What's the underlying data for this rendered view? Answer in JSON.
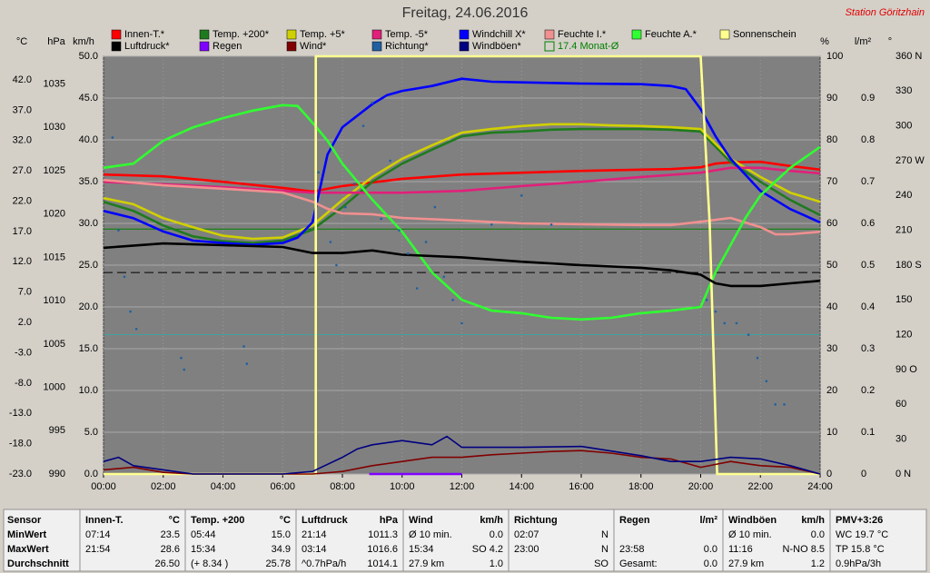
{
  "chart_data": {
    "type": "line",
    "title": "Freitag, 24.06.2016",
    "station": "Station Göritzhain",
    "xlim": [
      0,
      24
    ],
    "xticks": [
      {
        "value": 0,
        "label": "00:00"
      },
      {
        "value": 2,
        "label": "02:00"
      },
      {
        "value": 4,
        "label": "04:00"
      },
      {
        "value": 6,
        "label": "06:00"
      },
      {
        "value": 8,
        "label": "08:00"
      },
      {
        "value": 10,
        "label": "10:00"
      },
      {
        "value": 12,
        "label": "12:00"
      },
      {
        "value": 14,
        "label": "14:00"
      },
      {
        "value": 16,
        "label": "16:00"
      },
      {
        "value": 18,
        "label": "18:00"
      },
      {
        "value": 20,
        "label": "20:00"
      },
      {
        "value": 22,
        "label": "22:00"
      },
      {
        "value": 24,
        "label": "24:00"
      }
    ],
    "ylabel": "km/h",
    "ylim": [
      0,
      50
    ],
    "yticks": [
      {
        "value": 0,
        "label": "0.0"
      },
      {
        "value": 5,
        "label": "5.0"
      },
      {
        "value": 10,
        "label": "10.0"
      },
      {
        "value": 15,
        "label": "15.0"
      },
      {
        "value": 20,
        "label": "20.0"
      },
      {
        "value": 25,
        "label": "25.0"
      },
      {
        "value": 30,
        "label": "30.0"
      },
      {
        "value": 35,
        "label": "35.0"
      },
      {
        "value": 40,
        "label": "40.0"
      },
      {
        "value": 45,
        "label": "45.0"
      },
      {
        "value": 50,
        "label": "50.0"
      }
    ],
    "y2label": "°C",
    "y2lim": [
      -23,
      45.9
    ],
    "y2ticks": [
      {
        "value": -23,
        "label": "-23.0"
      },
      {
        "value": -18,
        "label": "-18.0"
      },
      {
        "value": -13,
        "label": "-13.0"
      },
      {
        "value": -8,
        "label": "-8.0"
      },
      {
        "value": -3,
        "label": "-3.0"
      },
      {
        "value": 2,
        "label": "2.0"
      },
      {
        "value": 7,
        "label": "7.0"
      },
      {
        "value": 12,
        "label": "12.0"
      },
      {
        "value": 17,
        "label": "17.0"
      },
      {
        "value": 22,
        "label": "22.0"
      },
      {
        "value": 27,
        "label": "27.0"
      },
      {
        "value": 32,
        "label": "32.0"
      },
      {
        "value": 37,
        "label": "37.0"
      },
      {
        "value": 42,
        "label": "42.0"
      }
    ],
    "y3label": "hPa",
    "y3lim": [
      990,
      1038.2
    ],
    "y3ticks": [
      990,
      995,
      1000,
      1005,
      1010,
      1015,
      1020,
      1025,
      1030,
      1035
    ],
    "y4label": "%",
    "y4lim": [
      0,
      100
    ],
    "y4ticks": [
      0,
      10,
      20,
      30,
      40,
      50,
      60,
      70,
      80,
      90,
      100
    ],
    "y5label": "l/m²",
    "y5lim": [
      0,
      1
    ],
    "y5ticks": [
      0,
      0.1,
      0.2,
      0.3,
      0.4,
      0.5,
      0.6,
      0.7,
      0.8,
      0.9
    ],
    "y6label": "°",
    "y6lim": [
      0,
      360
    ],
    "y6ticks": [
      {
        "value": 0,
        "label": "0 N"
      },
      30,
      60,
      {
        "value": 90,
        "label": "90 O"
      },
      120,
      150,
      {
        "value": 180,
        "label": "180 S"
      },
      210,
      240,
      {
        "value": 270,
        "label": "270 W"
      },
      300,
      330,
      {
        "value": 360,
        "label": "360 N"
      }
    ],
    "grid": true,
    "series": [
      {
        "name": "Innen-T.*",
        "color": "#ff0000",
        "axis": "y2",
        "x": [
          0,
          2,
          4,
          6,
          7,
          8,
          10,
          12,
          14,
          16,
          18,
          19,
          20,
          20.5,
          21,
          22,
          23,
          24
        ],
        "values": [
          26.4,
          26.1,
          25.2,
          24.2,
          23.6,
          24.5,
          25.7,
          26.4,
          26.7,
          27.0,
          27.2,
          27.3,
          27.6,
          28.2,
          28.4,
          28.5,
          27.8,
          27.2
        ]
      },
      {
        "name": "Temp. +200*",
        "color": "#1f7a1f",
        "axis": "y2",
        "x": [
          0,
          1,
          2,
          3,
          4,
          5,
          6,
          7,
          8,
          9,
          10,
          11,
          12,
          13,
          14,
          15,
          16,
          17,
          18,
          19,
          20,
          21,
          22,
          23,
          24
        ],
        "values": [
          21.9,
          20.4,
          18.0,
          16.2,
          15.4,
          15.1,
          15.5,
          17.3,
          21.0,
          25.2,
          28.2,
          30.5,
          32.7,
          33.3,
          33.5,
          33.8,
          33.9,
          33.9,
          33.9,
          33.8,
          33.5,
          28.5,
          25.2,
          22.2,
          19.7
        ]
      },
      {
        "name": "Temp. +5*",
        "color": "#d0d000",
        "axis": "y2",
        "x": [
          0,
          1,
          2,
          3,
          4,
          5,
          6,
          7,
          8,
          9,
          10,
          11,
          12,
          13,
          14,
          15,
          16,
          17,
          18,
          19,
          20,
          21,
          22,
          23,
          24
        ],
        "values": [
          22.5,
          21.5,
          19.2,
          17.7,
          16.3,
          15.8,
          16.0,
          18.0,
          22.2,
          26.0,
          29.0,
          31.2,
          33.3,
          33.9,
          34.4,
          34.7,
          34.7,
          34.5,
          34.4,
          34.2,
          33.9,
          29.0,
          26.0,
          23.4,
          21.9
        ]
      },
      {
        "name": "Temp. -5*",
        "color": "#e0207a",
        "axis": "y2",
        "x": [
          0,
          2,
          4,
          6,
          7,
          8,
          10,
          12,
          14,
          16,
          18,
          20,
          21,
          22,
          23,
          24
        ],
        "values": [
          25.2,
          24.8,
          24.3,
          23.7,
          23.4,
          23.4,
          23.4,
          23.7,
          24.5,
          25.2,
          26.0,
          26.7,
          27.5,
          27.5,
          27.0,
          26.6
        ]
      },
      {
        "name": "Windchill X*",
        "color": "#0000ff",
        "axis": "y2",
        "x": [
          0,
          1,
          2,
          3,
          4,
          5,
          6,
          6.5,
          7,
          7.5,
          8,
          9,
          9.5,
          10,
          11,
          12,
          13,
          14,
          16,
          18,
          19,
          19.5,
          20,
          20.5,
          21,
          22,
          23,
          24
        ],
        "values": [
          20.4,
          19.2,
          17.0,
          15.5,
          15.1,
          14.8,
          15.1,
          16.0,
          18.5,
          29.7,
          34.2,
          38.0,
          39.5,
          40.2,
          41.0,
          42.2,
          41.7,
          41.6,
          41.4,
          41.3,
          41.0,
          40.5,
          37.2,
          32.7,
          29.0,
          23.7,
          20.7,
          18.5
        ]
      },
      {
        "name": "Feuchte I.*",
        "color": "#f09090",
        "axis": "y4",
        "x": [
          0,
          2,
          4,
          6,
          7,
          7.5,
          8,
          9,
          10,
          12,
          14,
          16,
          18,
          19,
          20,
          21,
          22,
          22.5,
          23,
          24
        ],
        "values": [
          70.4,
          69.1,
          68.3,
          67.4,
          65.2,
          63.5,
          62.4,
          62.2,
          61.3,
          60.7,
          60.0,
          59.8,
          59.6,
          59.6,
          60.4,
          61.3,
          59.1,
          57.4,
          57.4,
          58.0
        ]
      },
      {
        "name": "Feuchte A.*",
        "color": "#30ff30",
        "axis": "y4",
        "x": [
          0,
          1,
          2,
          3,
          4,
          5,
          6,
          6.5,
          7,
          7.5,
          8,
          9,
          10,
          11,
          12,
          13,
          14,
          15,
          16,
          17,
          18,
          19,
          20,
          20.5,
          21,
          21.5,
          22,
          23,
          24
        ],
        "values": [
          73.3,
          74.3,
          79.8,
          83.0,
          85.2,
          87.0,
          88.3,
          88.1,
          84.1,
          79.8,
          74.3,
          65.7,
          58.0,
          48.3,
          41.7,
          39.1,
          38.5,
          37.4,
          37.0,
          37.4,
          38.5,
          39.1,
          40.0,
          48.3,
          54.8,
          61.3,
          66.7,
          73.3,
          78.3
        ]
      },
      {
        "name": "Sonnenschein",
        "color": "#ffff90",
        "axis": "y4",
        "x": [
          0,
          7.11,
          7.11,
          20,
          20.3,
          20.55,
          24
        ],
        "values": [
          0,
          0,
          100,
          100,
          60,
          0,
          0
        ]
      },
      {
        "name": "Luftdruck*",
        "color": "#000000",
        "axis": "y3",
        "x": [
          0,
          2,
          4,
          6,
          7,
          8,
          9,
          10,
          12,
          14,
          16,
          18,
          19,
          20,
          20.5,
          21,
          22,
          23,
          24
        ],
        "values": [
          1016.1,
          1016.6,
          1016.4,
          1016.2,
          1015.5,
          1015.5,
          1015.8,
          1015.3,
          1015.0,
          1014.5,
          1014.1,
          1013.8,
          1013.5,
          1013.0,
          1012.0,
          1011.7,
          1011.7,
          1012.0,
          1012.3
        ]
      },
      {
        "name": "Regen",
        "color": "#8000ff",
        "axis": "y5",
        "x": [
          8.9,
          12.0
        ],
        "values": [
          0,
          0
        ]
      },
      {
        "name": "Wind*",
        "color": "#800000",
        "axis": "y",
        "x": [
          0,
          1,
          2,
          3,
          4,
          5,
          6,
          7,
          8,
          9,
          10,
          11,
          12,
          13,
          14,
          15,
          16,
          17,
          18,
          19,
          20,
          21,
          22,
          23,
          24
        ],
        "values": [
          0.5,
          0.8,
          0.2,
          0,
          0,
          0,
          0,
          0,
          0.3,
          1.0,
          1.5,
          2.0,
          2.0,
          2.3,
          2.5,
          2.7,
          2.8,
          2.5,
          2.0,
          1.8,
          0.8,
          1.5,
          1.0,
          0.8,
          0
        ]
      },
      {
        "name": "Richtung*",
        "color": "#2060a0",
        "axis": "y6",
        "marker": "dot",
        "x": [
          0.3,
          0.5,
          0.7,
          0.9,
          1.1,
          2.6,
          2.7,
          4.7,
          4.8,
          7.2,
          7.6,
          7.8,
          8.1,
          8.4,
          8.7,
          9.0,
          9.3,
          9.6,
          9.9,
          10.2,
          10.5,
          10.8,
          11.1,
          11.4,
          11.7,
          12.0,
          13.0,
          14.0,
          15.0,
          20.2,
          20.5,
          20.8,
          21.2,
          21.6,
          21.9,
          22.2,
          22.5,
          22.8
        ],
        "values": [
          290,
          210,
          170,
          140,
          125,
          100,
          90,
          110,
          95,
          260,
          200,
          180,
          230,
          250,
          300,
          320,
          220,
          270,
          210,
          190,
          160,
          200,
          230,
          170,
          150,
          130,
          215,
          240,
          215,
          150,
          140,
          130,
          130,
          120,
          100,
          80,
          60,
          60
        ]
      },
      {
        "name": "Windböen*",
        "color": "#000080",
        "axis": "y",
        "x": [
          0,
          0.5,
          1,
          2,
          3,
          6,
          7,
          8,
          8.5,
          9,
          10,
          11,
          11.5,
          12,
          14,
          16,
          18,
          19,
          20,
          21,
          22,
          23,
          24
        ],
        "values": [
          1.5,
          2,
          1,
          0.5,
          0,
          0,
          0.3,
          2,
          3,
          3.5,
          4,
          3.5,
          4.5,
          3.2,
          3.2,
          3.3,
          2.2,
          1.5,
          1.5,
          2,
          1.8,
          1,
          0
        ]
      }
    ],
    "reference_lines": [
      {
        "name": "17.4 Monat-Ø",
        "value": 17.4,
        "axis": "y2",
        "color": "#008000"
      },
      {
        "value": 1013.25,
        "axis": "y3",
        "color": "#000000",
        "dashed": true
      },
      {
        "value": 0,
        "axis": "y2",
        "color": "#40a0a0"
      }
    ]
  },
  "table": {
    "rows": [
      [
        "Sensor",
        {
          "left": "Innen-T.",
          "right": "°C"
        },
        {
          "left": "Temp. +200",
          "right": "°C"
        },
        {
          "left": "Luftdruck",
          "right": "hPa"
        },
        {
          "left": "Wind",
          "right": "km/h"
        },
        {
          "left": "Richtung"
        },
        {
          "left": "Regen",
          "right": "l/m²"
        },
        {
          "left": "Windböen",
          "right": "km/h"
        },
        {
          "left": "PMV+3:26"
        }
      ],
      [
        "MinWert",
        {
          "left": "07:14",
          "right": "23.5"
        },
        {
          "left": "05:44",
          "right": "15.0"
        },
        {
          "left": "21:14",
          "right": "1011.3"
        },
        {
          "left": "Ø 10 min.",
          "right": "0.0"
        },
        {
          "left": "02:07",
          "right": "N"
        },
        {},
        {
          "left": "Ø 10 min.",
          "right": "0.0"
        },
        {
          "left": "WC 19.7 °C"
        }
      ],
      [
        "MaxWert",
        {
          "left": "21:54",
          "right": "28.6"
        },
        {
          "left": "15:34",
          "right": "34.9"
        },
        {
          "left": "03:14",
          "right": "1016.6"
        },
        {
          "left": "15:34",
          "right": "SO 4.2"
        },
        {
          "left": "23:00",
          "right": "N"
        },
        {
          "left": "23:58",
          "right": "0.0"
        },
        {
          "left": "11:16",
          "right": "N-NO 8.5"
        },
        {
          "left": "TP 15.8 °C"
        }
      ],
      [
        "Durchschnitt",
        {
          "right": "26.50"
        },
        {
          "left": "(+ 8.34 )",
          "right": "25.78"
        },
        {
          "left": "^0.7hPa/h",
          "right": "1014.1"
        },
        {
          "left": "27.9 km",
          "right": "1.0"
        },
        {
          "right": "SO"
        },
        {
          "left": "Gesamt:",
          "right": "0.0"
        },
        {
          "left": "27.9 km",
          "right": "1.2"
        },
        {
          "left": "0.9hPa/3h"
        }
      ]
    ]
  }
}
